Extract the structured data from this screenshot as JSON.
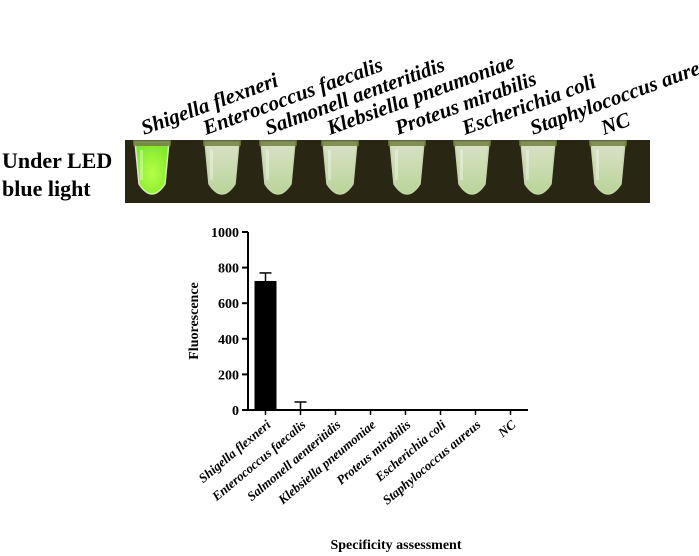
{
  "photo": {
    "label_lines": [
      "Under LED",
      "blue light"
    ],
    "tube_labels": [
      "Shigella flexneri",
      "Enterococcus faecalis",
      "Salmonell aenteritidis",
      "Klebsiella pneumoniae",
      "Proteus mirabilis",
      "Escherichia coli",
      "Staphylococcus aureus",
      "NC"
    ],
    "tube_label_italic": [
      true,
      true,
      true,
      true,
      true,
      true,
      true,
      false
    ],
    "colors": {
      "background": "#2a2614",
      "positive_fluid": "#7fe82a",
      "negative_fluid": "#c9e8a8",
      "tube_glass": "#d8e8c0"
    },
    "positive_index": 0
  },
  "chart_data": {
    "type": "bar",
    "categories": [
      "Shigella flexneri",
      "Enterococcus faecalis",
      "Salmonell aenteritidis",
      "Klebsiella pneumoniae",
      "Proteus mirabilis",
      "Escherichia coli",
      "Staphylococcus aureus",
      "NC"
    ],
    "values": [
      725,
      5,
      0,
      0,
      0,
      0,
      0,
      0
    ],
    "errors": [
      45,
      40,
      0,
      0,
      0,
      0,
      0,
      0
    ],
    "title": "",
    "xlabel": "Specificity assessment",
    "ylabel": "Fluorescence",
    "ylim": [
      0,
      1000
    ],
    "yticks": [
      0,
      200,
      400,
      600,
      800,
      1000
    ],
    "bar_color": "#000000",
    "grid": false
  }
}
